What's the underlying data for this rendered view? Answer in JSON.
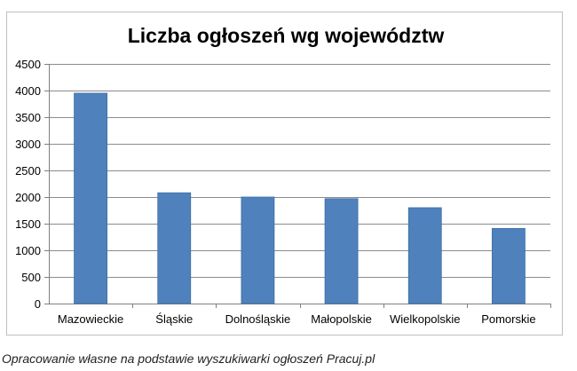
{
  "chart_data": {
    "type": "bar",
    "title": "Liczba ogłoszeń wg województw",
    "categories": [
      "Mazowieckie",
      "Śląskie",
      "Dolnośląskie",
      "Małopolskie",
      "Wielkopolskie",
      "Pomorskie"
    ],
    "values": [
      3950,
      2080,
      2000,
      1970,
      1800,
      1410
    ],
    "ylim": [
      0,
      4500
    ],
    "yticks": [
      0,
      500,
      1000,
      1500,
      2000,
      2500,
      3000,
      3500,
      4000,
      4500
    ],
    "xlabel": "",
    "ylabel": "",
    "grid": true,
    "legend": "none",
    "colors": {
      "bar": "#4f81bd",
      "bar_edge": "#3a6ea5",
      "grid": "#8c8c8c",
      "axis": "#7f7f7f",
      "title": "#000000"
    }
  },
  "caption": "Opracowanie własne na podstawie wyszukiwarki ogłoszeń Pracuj.pl"
}
